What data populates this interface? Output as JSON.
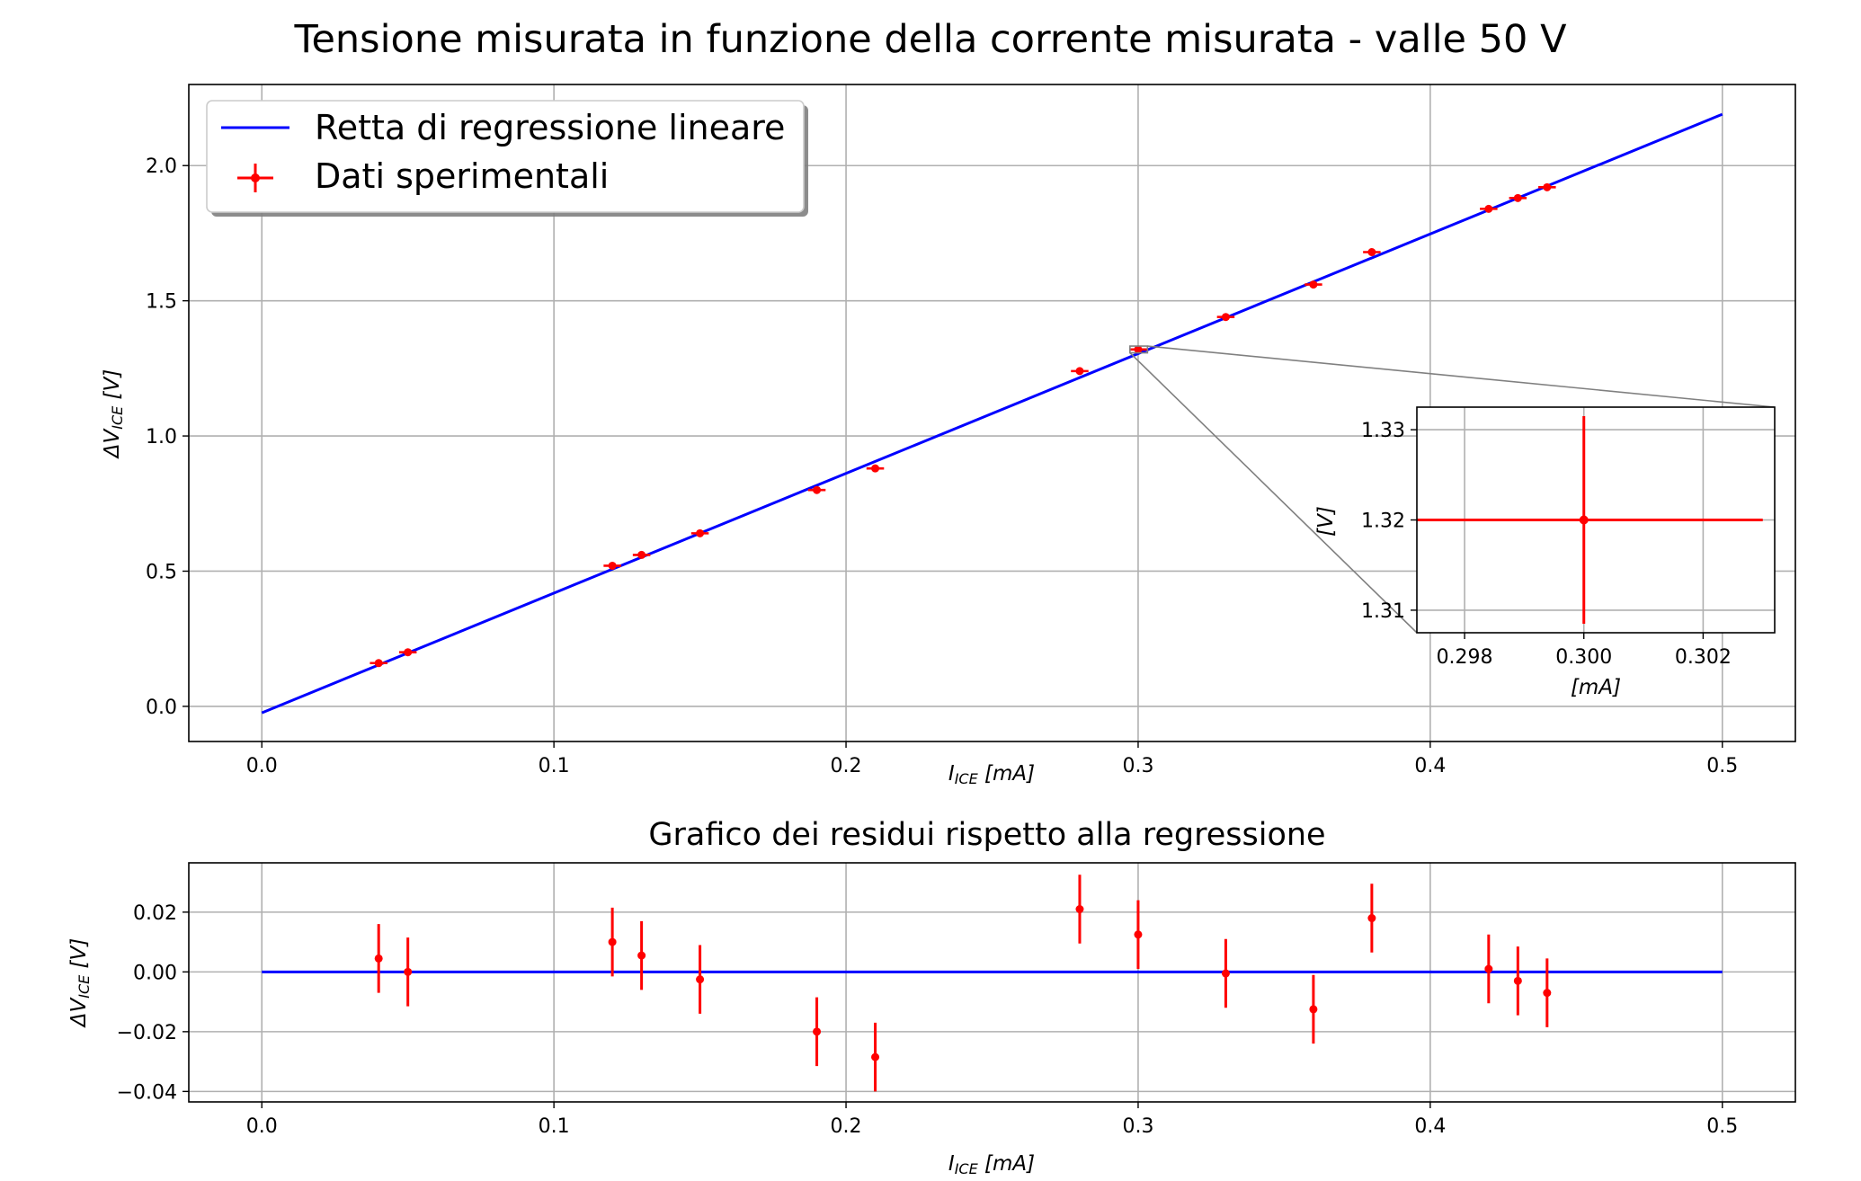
{
  "colors": {
    "fit_line": "#0000ff",
    "data_points": "#ff0000",
    "grid": "#b0b0b0",
    "zoom_box": "#808080"
  },
  "chart_data": [
    {
      "type": "scatter",
      "title": "Tensione misurata in funzione della corrente misurata - valle 50 V",
      "xlabel": {
        "main": "I",
        "sub": "ICE",
        "unit": " [mA]"
      },
      "ylabel": {
        "main": "ΔV",
        "sub": "ICE",
        "unit": " [V]"
      },
      "xlim": [
        -0.025,
        0.525
      ],
      "ylim": [
        -0.13,
        2.3
      ],
      "xticks": [
        0.0,
        0.1,
        0.2,
        0.3,
        0.4,
        0.5
      ],
      "xtick_labels": [
        "0.0",
        "0.1",
        "0.2",
        "0.3",
        "0.4",
        "0.5"
      ],
      "yticks": [
        0.0,
        0.5,
        1.0,
        1.5,
        2.0
      ],
      "ytick_labels": [
        "0.0",
        "0.5",
        "1.0",
        "1.5",
        "2.0"
      ],
      "grid": true,
      "legend": {
        "placement": "upper-left",
        "entries": [
          "Retta di regressione lineare",
          "Dati sperimentali"
        ]
      },
      "series": [
        {
          "name": "Retta di regressione lineare",
          "kind": "line",
          "x": [
            0.0,
            0.5
          ],
          "y": [
            -0.024,
            2.19
          ]
        },
        {
          "name": "Dati sperimentali",
          "kind": "errorbar",
          "x": [
            0.04,
            0.05,
            0.12,
            0.13,
            0.15,
            0.19,
            0.21,
            0.28,
            0.3,
            0.33,
            0.36,
            0.38,
            0.42,
            0.43,
            0.44
          ],
          "y": [
            0.16,
            0.2,
            0.52,
            0.56,
            0.64,
            0.8,
            0.88,
            1.24,
            1.32,
            1.44,
            1.56,
            1.68,
            1.84,
            1.88,
            1.92
          ],
          "xerr": 0.003,
          "yerr": 0.0115
        }
      ]
    },
    {
      "type": "scatter",
      "subtype": "inset",
      "xlabel": "[mA]",
      "ylabel": "[V]",
      "xlim": [
        0.2972,
        0.3032
      ],
      "ylim": [
        1.3075,
        1.3325
      ],
      "xticks": [
        0.298,
        0.3,
        0.302
      ],
      "xtick_labels": [
        "0.298",
        "0.300",
        "0.302"
      ],
      "yticks": [
        1.31,
        1.32,
        1.33
      ],
      "ytick_labels": [
        "1.31",
        "1.32",
        "1.33"
      ],
      "grid": true,
      "series": [
        {
          "kind": "errorbar",
          "x": [
            0.3
          ],
          "y": [
            1.32
          ],
          "xerr": 0.003,
          "yerr": 0.0115
        }
      ]
    },
    {
      "type": "scatter",
      "title": "Grafico dei residui rispetto alla regressione",
      "xlabel": {
        "main": "I",
        "sub": "ICE",
        "unit": " [mA]"
      },
      "ylabel": {
        "main": "ΔV",
        "sub": "ICE",
        "unit": " [V]"
      },
      "xlim": [
        -0.025,
        0.525
      ],
      "ylim": [
        -0.0435,
        0.0365
      ],
      "xticks": [
        0.0,
        0.1,
        0.2,
        0.3,
        0.4,
        0.5
      ],
      "xtick_labels": [
        "0.0",
        "0.1",
        "0.2",
        "0.3",
        "0.4",
        "0.5"
      ],
      "yticks": [
        -0.04,
        -0.02,
        0.0,
        0.02
      ],
      "ytick_labels": [
        "−0.04",
        "−0.02",
        "0.00",
        "0.02"
      ],
      "grid": true,
      "series": [
        {
          "kind": "line",
          "x": [
            0.0,
            0.5
          ],
          "y": [
            0.0,
            0.0
          ]
        },
        {
          "kind": "errorbar",
          "x": [
            0.04,
            0.05,
            0.12,
            0.13,
            0.15,
            0.19,
            0.21,
            0.28,
            0.3,
            0.33,
            0.36,
            0.38,
            0.42,
            0.43,
            0.44
          ],
          "y": [
            0.0045,
            0.0,
            0.01,
            0.0055,
            -0.0025,
            -0.02,
            -0.0285,
            0.021,
            0.0125,
            -0.0005,
            -0.0125,
            0.018,
            0.001,
            -0.003,
            -0.007
          ],
          "xerr": 0.0,
          "yerr": 0.0115
        }
      ]
    }
  ]
}
